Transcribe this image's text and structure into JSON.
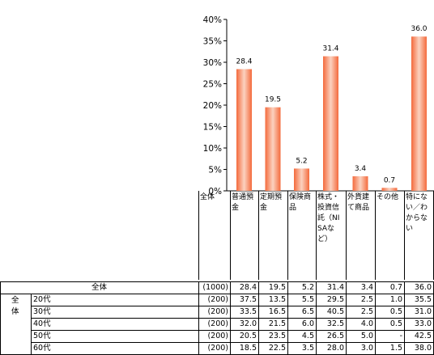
{
  "chart_data": {
    "type": "bar",
    "ylim": [
      0,
      40
    ],
    "yticks": [
      "0%",
      "5%",
      "10%",
      "15%",
      "20%",
      "25%",
      "30%",
      "35%",
      "40%"
    ],
    "grid": false,
    "legend": "none",
    "bar_color": "#f46a3c",
    "bar_color_light": "#fbd2c0",
    "categories": [
      "普通預金",
      "定期預金",
      "保険商品",
      "株式・投資信託（NISAなど）",
      "外貨建て商品",
      "その他",
      "特にない／わからない"
    ],
    "values": [
      28.4,
      19.5,
      5.2,
      31.4,
      3.4,
      0.7,
      36.0
    ],
    "value_labels": [
      "28.4",
      "19.5",
      "5.2",
      "31.4",
      "3.4",
      "0.7",
      "36.0"
    ]
  },
  "table": {
    "header_first": "全体",
    "total_row": {
      "label": "全体",
      "n": "(1000)",
      "values": [
        "28.4",
        "19.5",
        "5.2",
        "31.4",
        "3.4",
        "0.7",
        "36.0"
      ]
    },
    "group_label": "全体",
    "group_label_chars": [
      "全",
      "体"
    ],
    "rows": [
      {
        "label": "20代",
        "n": "(200)",
        "values": [
          "37.5",
          "13.5",
          "5.5",
          "29.5",
          "2.5",
          "1.0",
          "35.5"
        ]
      },
      {
        "label": "30代",
        "n": "(200)",
        "values": [
          "33.5",
          "16.5",
          "6.5",
          "40.5",
          "2.5",
          "0.5",
          "31.0"
        ]
      },
      {
        "label": "40代",
        "n": "(200)",
        "values": [
          "32.0",
          "21.5",
          "6.0",
          "32.5",
          "4.0",
          "0.5",
          "33.0"
        ]
      },
      {
        "label": "50代",
        "n": "(200)",
        "values": [
          "20.5",
          "23.5",
          "4.5",
          "26.5",
          "5.0",
          "-",
          "42.5"
        ]
      },
      {
        "label": "60代",
        "n": "(200)",
        "values": [
          "18.5",
          "22.5",
          "3.5",
          "28.0",
          "3.0",
          "1.5",
          "38.0"
        ]
      }
    ]
  }
}
